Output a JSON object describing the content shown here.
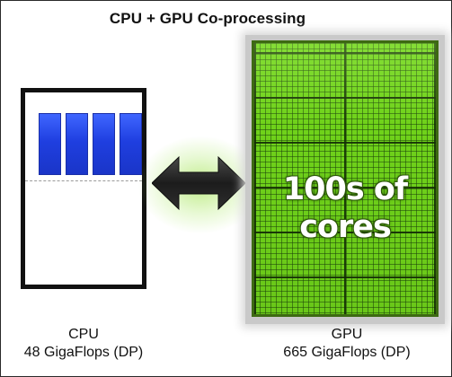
{
  "title": "CPU + GPU Co-processing",
  "cpu": {
    "name": "CPU",
    "performance": "48 GigaFlops (DP)",
    "core_color": "#2a4cf0",
    "core_count": 4
  },
  "gpu": {
    "name": "GPU",
    "performance": "665 GigaFlops (DP)",
    "overlay_line1": "100s of",
    "overlay_line2": "cores",
    "die_color": "#6fd21a"
  },
  "link": {
    "icon": "bidirectional-arrow-icon",
    "glow_color": "#8cdc28"
  }
}
